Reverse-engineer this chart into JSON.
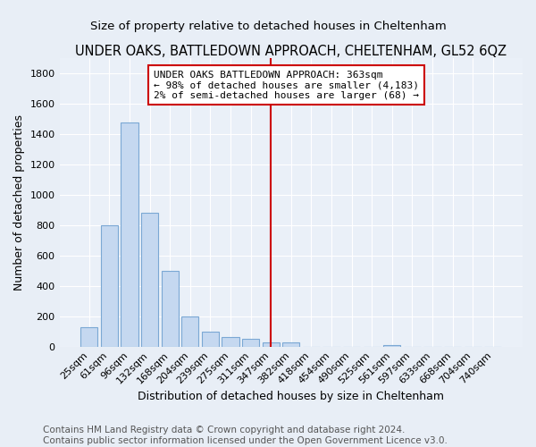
{
  "title": "UNDER OAKS, BATTLEDOWN APPROACH, CHELTENHAM, GL52 6QZ",
  "subtitle": "Size of property relative to detached houses in Cheltenham",
  "xlabel": "Distribution of detached houses by size in Cheltenham",
  "ylabel": "Number of detached properties",
  "footer1": "Contains HM Land Registry data © Crown copyright and database right 2024.",
  "footer2": "Contains public sector information licensed under the Open Government Licence v3.0.",
  "categories": [
    "25sqm",
    "61sqm",
    "96sqm",
    "132sqm",
    "168sqm",
    "204sqm",
    "239sqm",
    "275sqm",
    "311sqm",
    "347sqm",
    "382sqm",
    "418sqm",
    "454sqm",
    "490sqm",
    "525sqm",
    "561sqm",
    "597sqm",
    "633sqm",
    "668sqm",
    "704sqm",
    "740sqm"
  ],
  "values": [
    130,
    800,
    1476,
    884,
    497,
    200,
    100,
    65,
    50,
    30,
    25,
    0,
    0,
    0,
    0,
    10,
    0,
    0,
    0,
    0,
    0
  ],
  "bar_color": "#c5d8f0",
  "bar_edge_color": "#7ba8d4",
  "highlight_index": 9,
  "highlight_color": "#cc0000",
  "annotation_box_color": "#ffffff",
  "annotation_border_color": "#cc0000",
  "annotation_text_line1": "UNDER OAKS BATTLEDOWN APPROACH: 363sqm",
  "annotation_text_line2": "← 98% of detached houses are smaller (4,183)",
  "annotation_text_line3": "2% of semi-detached houses are larger (68) →",
  "ylim": [
    0,
    1900
  ],
  "yticks": [
    0,
    200,
    400,
    600,
    800,
    1000,
    1200,
    1400,
    1600,
    1800
  ],
  "bg_color": "#e8eef6",
  "plot_bg_color": "#eaf0f8",
  "title_fontsize": 10.5,
  "subtitle_fontsize": 9.5,
  "axis_label_fontsize": 9,
  "tick_fontsize": 8,
  "annotation_fontsize": 8,
  "footer_fontsize": 7.5
}
